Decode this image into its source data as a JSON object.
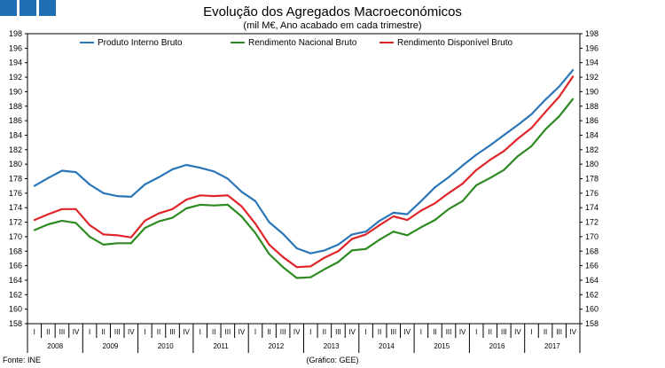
{
  "header": {
    "title": "Evolução dos Agregados Macroeconómicos",
    "subtitle": "(mil M€, Ano acabado em cada trimestre)"
  },
  "footer": {
    "source": "Fonte: INE",
    "credit": "(Gráfico: GEE)"
  },
  "chart_data": {
    "type": "line",
    "title": "Evolução dos Agregados Macroeconómicos",
    "subtitle": "(mil M€, Ano acabado em cada trimestre)",
    "ylim": [
      158,
      198
    ],
    "ytick_step": 2,
    "dual_y_axis": true,
    "legend_position": "top",
    "quarters": [
      "I",
      "II",
      "III",
      "IV"
    ],
    "years": [
      "2008",
      "2009",
      "2010",
      "2011",
      "2012",
      "2013",
      "2014",
      "2015",
      "2016",
      "2017"
    ],
    "series": [
      {
        "name": "Produto Interno Bruto",
        "color": "#2a76b8",
        "values": [
          177.0,
          178.1,
          179.1,
          178.9,
          177.2,
          176.0,
          175.6,
          175.5,
          177.2,
          178.2,
          179.3,
          179.9,
          179.5,
          179.0,
          178.0,
          176.2,
          174.9,
          172.0,
          170.4,
          168.4,
          167.7,
          168.1,
          168.9,
          170.3,
          170.7,
          172.2,
          173.3,
          173.1,
          174.9,
          176.8,
          178.2,
          179.8,
          181.3,
          182.6,
          184.0,
          185.4,
          186.9,
          188.9,
          190.7,
          193.0
        ]
      },
      {
        "name": "Rendimento Nacional Bruto",
        "color": "#2e8a22",
        "values": [
          170.9,
          171.7,
          172.2,
          171.9,
          170.0,
          168.9,
          169.1,
          169.1,
          171.2,
          172.1,
          172.6,
          173.9,
          174.4,
          174.3,
          174.4,
          172.8,
          170.5,
          167.6,
          165.8,
          164.3,
          164.4,
          165.5,
          166.5,
          168.1,
          168.3,
          169.6,
          170.7,
          170.2,
          171.3,
          172.3,
          173.8,
          174.9,
          177.1,
          178.1,
          179.2,
          181.1,
          182.5,
          184.8,
          186.6,
          189.0
        ]
      },
      {
        "name": "Rendimento Disponível Bruto",
        "color": "#e0262a",
        "values": [
          172.3,
          173.1,
          173.8,
          173.8,
          171.6,
          170.3,
          170.2,
          169.9,
          172.2,
          173.2,
          173.8,
          175.1,
          175.7,
          175.6,
          175.7,
          174.2,
          171.8,
          168.9,
          167.2,
          165.8,
          165.9,
          167.1,
          168.0,
          169.7,
          170.3,
          171.6,
          172.8,
          172.3,
          173.6,
          174.6,
          176.0,
          177.3,
          179.2,
          180.6,
          181.8,
          183.5,
          185.0,
          187.2,
          189.3,
          192.1
        ]
      }
    ]
  }
}
